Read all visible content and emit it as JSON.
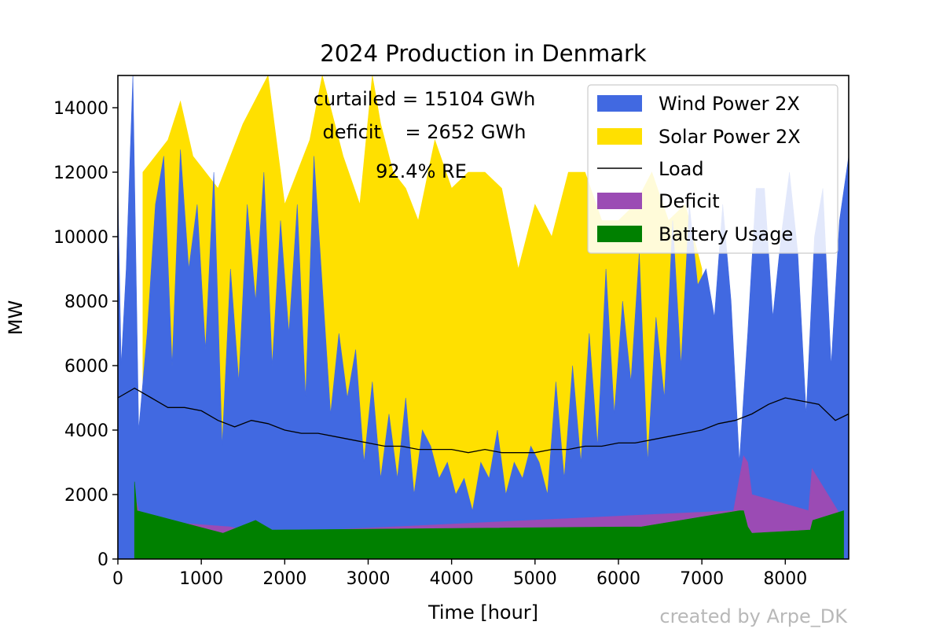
{
  "chart_data": {
    "type": "area",
    "title": "2024 Production in Denmark",
    "xlabel": "Time [hour]",
    "ylabel": "MW",
    "xlim": [
      0,
      8760
    ],
    "ylim": [
      0,
      15000
    ],
    "x_ticks": [
      0,
      1000,
      2000,
      3000,
      4000,
      5000,
      6000,
      7000,
      8000
    ],
    "y_ticks": [
      0,
      2000,
      4000,
      6000,
      8000,
      10000,
      12000,
      14000
    ],
    "legend_position": "top-right",
    "series": [
      {
        "name": "Wind Power 2X",
        "color": "#4169E1",
        "style": "area",
        "x": [
          0,
          40,
          100,
          180,
          250,
          350,
          450,
          550,
          650,
          750,
          850,
          950,
          1050,
          1150,
          1250,
          1350,
          1450,
          1550,
          1650,
          1750,
          1850,
          1950,
          2050,
          2150,
          2250,
          2350,
          2450,
          2550,
          2650,
          2750,
          2850,
          2950,
          3050,
          3150,
          3250,
          3350,
          3450,
          3550,
          3650,
          3750,
          3850,
          3950,
          4050,
          4150,
          4250,
          4350,
          4450,
          4550,
          4650,
          4750,
          4850,
          4950,
          5050,
          5150,
          5250,
          5350,
          5450,
          5550,
          5650,
          5750,
          5850,
          5950,
          6050,
          6150,
          6250,
          6350,
          6450,
          6550,
          6650,
          6750,
          6850,
          6950,
          7050,
          7150,
          7250,
          7350,
          7450,
          7550,
          7650,
          7750,
          7850,
          7950,
          8050,
          8150,
          8250,
          8350,
          8450,
          8550,
          8650,
          8760
        ],
        "values": [
          11500,
          6000,
          9000,
          15000,
          4000,
          7000,
          11000,
          12500,
          6000,
          12700,
          9000,
          11000,
          6500,
          12000,
          3500,
          9000,
          5500,
          11000,
          8000,
          12000,
          6000,
          10500,
          7000,
          11000,
          5000,
          12500,
          8500,
          4500,
          7000,
          5000,
          6500,
          3000,
          5500,
          2500,
          4500,
          2500,
          5000,
          2000,
          4000,
          3500,
          2500,
          3000,
          2000,
          2500,
          1500,
          3000,
          2500,
          4000,
          2000,
          3000,
          2500,
          3500,
          3000,
          2000,
          5500,
          2500,
          6000,
          3000,
          7000,
          3500,
          9000,
          4500,
          8000,
          5500,
          9500,
          3000,
          7500,
          5000,
          10500,
          6000,
          11000,
          8500,
          9000,
          7500,
          11000,
          8000,
          3000,
          7000,
          11500,
          11500,
          7500,
          10000,
          12000,
          9500,
          4500,
          10000,
          11500,
          6000,
          10500,
          12500
        ]
      },
      {
        "name": "Solar Power 2X",
        "color": "#FFE000",
        "style": "area",
        "x": [
          300,
          600,
          750,
          900,
          1200,
          1500,
          1800,
          2000,
          2300,
          2450,
          2700,
          2900,
          3050,
          3150,
          3300,
          3450,
          3600,
          3800,
          4000,
          4200,
          4400,
          4600,
          4800,
          5000,
          5200,
          5400,
          5600,
          5800,
          6000,
          6200,
          6400,
          6600,
          6800,
          7000
        ],
        "values": [
          12000,
          13000,
          14200,
          12500,
          11500,
          13500,
          15000,
          11000,
          13000,
          15000,
          12500,
          11000,
          15000,
          13500,
          12000,
          11500,
          10500,
          13000,
          11500,
          12000,
          12000,
          11500,
          9000,
          11000,
          10000,
          12000,
          12000,
          10500,
          10500,
          11000,
          12000,
          10500,
          11000,
          9000
        ]
      },
      {
        "name": "Load",
        "color": "#000000",
        "style": "line",
        "x": [
          0,
          200,
          400,
          600,
          800,
          1000,
          1200,
          1400,
          1600,
          1800,
          2000,
          2200,
          2400,
          2600,
          2800,
          3000,
          3200,
          3400,
          3600,
          3800,
          4000,
          4200,
          4400,
          4600,
          4800,
          5000,
          5200,
          5400,
          5600,
          5800,
          6000,
          6200,
          6400,
          6600,
          6800,
          7000,
          7200,
          7400,
          7600,
          7800,
          8000,
          8200,
          8400,
          8600,
          8760
        ],
        "values": [
          5000,
          5300,
          5000,
          4700,
          4700,
          4600,
          4300,
          4100,
          4300,
          4200,
          4000,
          3900,
          3900,
          3800,
          3700,
          3600,
          3500,
          3500,
          3400,
          3400,
          3400,
          3300,
          3400,
          3300,
          3300,
          3300,
          3400,
          3400,
          3500,
          3500,
          3600,
          3600,
          3700,
          3800,
          3900,
          4000,
          4200,
          4300,
          4500,
          4800,
          5000,
          4900,
          4800,
          4300,
          4500
        ]
      },
      {
        "name": "Deficit",
        "color": "#9B4BB4",
        "style": "area",
        "x": [
          200,
          220,
          280,
          1340,
          1700,
          7380,
          7450,
          7500,
          7550,
          7600,
          8280,
          8320,
          8700
        ],
        "values": [
          1500,
          1800,
          1200,
          1000,
          800,
          1500,
          2500,
          3200,
          3000,
          2000,
          1500,
          2800,
          1200
        ]
      },
      {
        "name": "Battery Usage",
        "color": "#008000",
        "style": "area",
        "x": [
          200,
          230,
          1260,
          1650,
          1850,
          6280,
          7450,
          7500,
          7550,
          7600,
          8300,
          8330,
          8700
        ],
        "values": [
          2400,
          1500,
          800,
          1200,
          900,
          1000,
          1500,
          1500,
          1000,
          800,
          900,
          1200,
          1500
        ]
      }
    ],
    "annotations": [
      "curtailed = 15104 GWh",
      "deficit    = 2652 GWh",
      "92.4% RE"
    ],
    "credit": "created by Arpe_DK"
  }
}
